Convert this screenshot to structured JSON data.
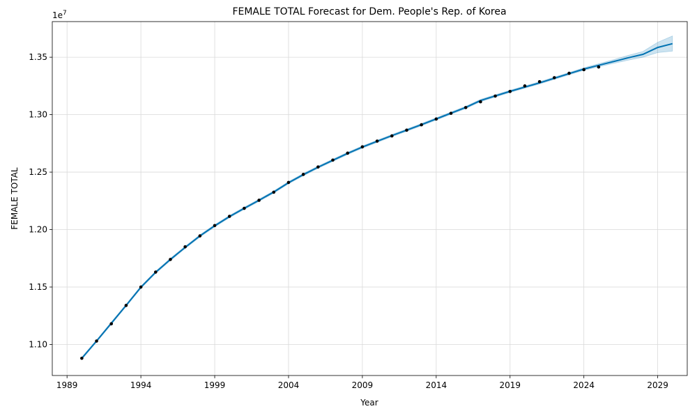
{
  "chart_data": {
    "type": "line",
    "title": "FEMALE TOTAL Forecast for Dem. People's Rep. of Korea",
    "xlabel": "Year",
    "ylabel": "FEMALE TOTAL",
    "y_multiplier": "1e7",
    "xlim": [
      1988,
      2031
    ],
    "ylim": [
      10730000,
      13810000
    ],
    "x_ticks": [
      1989,
      1994,
      1999,
      2004,
      2009,
      2014,
      2019,
      2024,
      2029
    ],
    "y_ticks": [
      11000000,
      11500000,
      12000000,
      12500000,
      13000000,
      13500000
    ],
    "y_tick_labels": [
      "1.10",
      "1.15",
      "1.20",
      "1.25",
      "1.30",
      "1.35"
    ],
    "grid": true,
    "colors": {
      "forecast": "#0072B2",
      "band": "#0072B2",
      "observed": "#000000"
    },
    "observed": {
      "x": [
        1990,
        1991,
        1992,
        1993,
        1994,
        1995,
        1996,
        1997,
        1998,
        1999,
        2000,
        2001,
        2002,
        2003,
        2004,
        2005,
        2006,
        2007,
        2008,
        2009,
        2010,
        2011,
        2012,
        2013,
        2014,
        2015,
        2016,
        2017,
        2018,
        2019,
        2020,
        2021,
        2022,
        2023,
        2024,
        2025
      ],
      "y": [
        10880000,
        11030000,
        11180000,
        11340000,
        11500000,
        11630000,
        11740000,
        11850000,
        11945000,
        12035000,
        12115000,
        12185000,
        12255000,
        12325000,
        12410000,
        12480000,
        12545000,
        12605000,
        12665000,
        12720000,
        12770000,
        12815000,
        12865000,
        12912000,
        12962000,
        13012000,
        13062000,
        13112000,
        13162000,
        13202000,
        13250000,
        13287000,
        13322000,
        13360000,
        13392000,
        13415000
      ]
    },
    "forecast": {
      "x": [
        1990,
        1991,
        1992,
        1993,
        1994,
        1995,
        1996,
        1997,
        1998,
        1999,
        2000,
        2001,
        2002,
        2003,
        2004,
        2005,
        2006,
        2007,
        2008,
        2009,
        2010,
        2011,
        2012,
        2013,
        2014,
        2015,
        2016,
        2017,
        2018,
        2019,
        2020,
        2021,
        2022,
        2023,
        2024,
        2025,
        2026,
        2027,
        2028,
        2029,
        2030
      ],
      "y": [
        10880000,
        11030000,
        11185000,
        11340000,
        11498000,
        11628000,
        11740000,
        11845000,
        11945000,
        12033000,
        12113000,
        12185000,
        12255000,
        12327000,
        12408000,
        12478000,
        12543000,
        12603000,
        12663000,
        12718000,
        12768000,
        12818000,
        12865000,
        12913000,
        12963000,
        13013000,
        13063000,
        13123000,
        13163000,
        13203000,
        13240000,
        13277000,
        13317000,
        13357000,
        13397000,
        13430000,
        13462000,
        13495000,
        13525000,
        13585000,
        13618000
      ],
      "lower": [
        10870000,
        11020000,
        11175000,
        11330000,
        11488000,
        11618000,
        11730000,
        11835000,
        11935000,
        12023000,
        12103000,
        12175000,
        12245000,
        12317000,
        12398000,
        12468000,
        12533000,
        12593000,
        12653000,
        12708000,
        12758000,
        12808000,
        12855000,
        12903000,
        12953000,
        13003000,
        13053000,
        13113000,
        13153000,
        13193000,
        13230000,
        13267000,
        13307000,
        13347000,
        13386000,
        13417000,
        13446000,
        13474000,
        13500000,
        13540000,
        13553000
      ],
      "upper": [
        10890000,
        11040000,
        11195000,
        11350000,
        11508000,
        11638000,
        11750000,
        11855000,
        11955000,
        12043000,
        12123000,
        12195000,
        12265000,
        12337000,
        12418000,
        12488000,
        12553000,
        12613000,
        12673000,
        12728000,
        12778000,
        12828000,
        12875000,
        12923000,
        12973000,
        13023000,
        13073000,
        13133000,
        13173000,
        13213000,
        13250000,
        13287000,
        13327000,
        13367000,
        13408000,
        13443000,
        13478000,
        13516000,
        13550000,
        13630000,
        13685000
      ]
    }
  }
}
